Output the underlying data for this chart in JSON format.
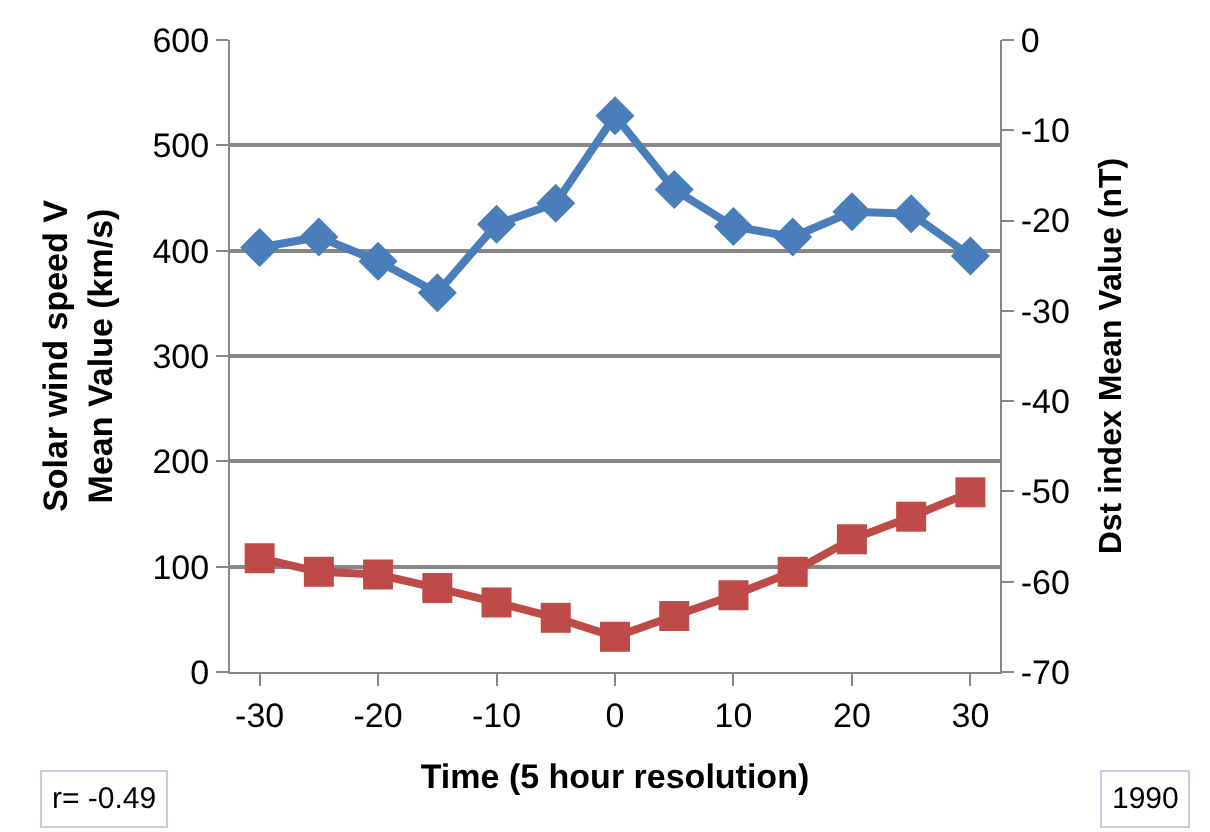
{
  "chart_data": {
    "type": "line",
    "xlabel": "Time (5 hour resolution)",
    "ylabel": "Solar wind speed V Mean Value (km/s)",
    "y2label": "Dst index Mean Value (nT)",
    "x": [
      -30,
      -25,
      -20,
      -15,
      -10,
      -5,
      0,
      5,
      10,
      15,
      20,
      25,
      30
    ],
    "series": [
      {
        "color": "#4a7ebb",
        "marker": "diamond",
        "values": [
          403,
          413,
          390,
          360,
          425,
          445,
          528,
          458,
          423,
          413,
          437,
          435,
          395
        ]
      },
      {
        "color": "#be4b48",
        "marker": "square",
        "axis": "y2",
        "values": [
          -57.4,
          -58.9,
          -59.2,
          -60.7,
          -62.3,
          -64.0,
          -66.1,
          -63.8,
          -61.5,
          -58.9,
          -55.3,
          -52.8,
          -50.1
        ]
      }
    ],
    "xlim": [
      -32.5,
      32.5
    ],
    "xticks": [
      -30,
      -20,
      -10,
      0,
      10,
      20,
      30
    ],
    "ylim": [
      0,
      600
    ],
    "yticks": [
      0,
      100,
      200,
      300,
      400,
      500,
      600
    ],
    "y2lim": [
      -70,
      0
    ],
    "y2ticks": [
      -70,
      -60,
      -50,
      -40,
      -30,
      -20,
      -10,
      0
    ],
    "grid": "y",
    "annotations": [
      "r= -0.49",
      "1990"
    ]
  }
}
